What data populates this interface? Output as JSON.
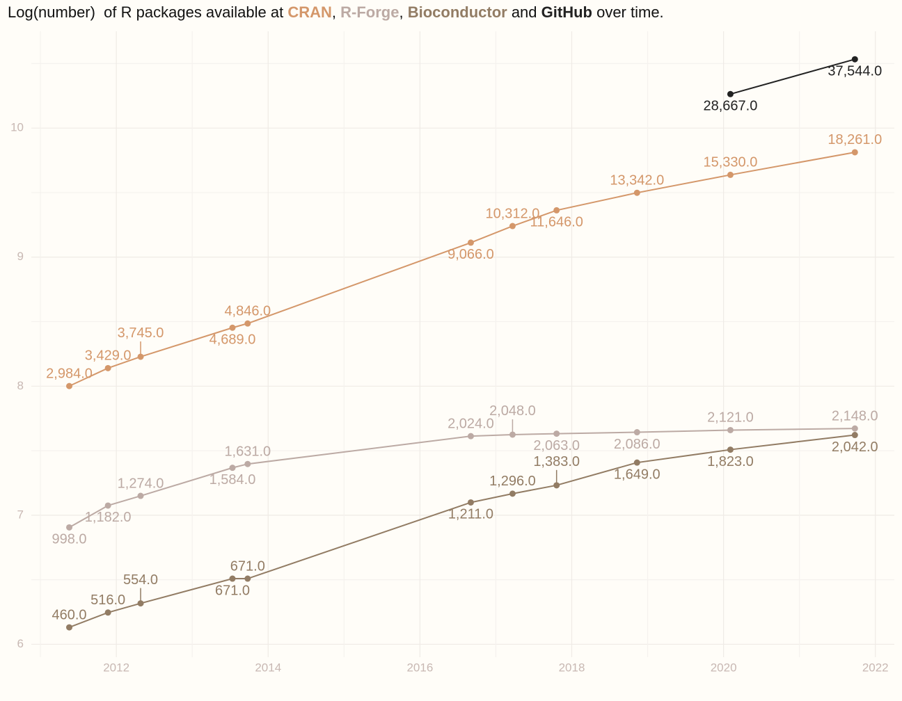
{
  "chart_data": {
    "type": "line",
    "title_parts": [
      "Log(number)  of R packages available at ",
      ", ",
      ", ",
      " and ",
      " over time."
    ],
    "log_scale": "ln",
    "xlim": [
      2010.88,
      2022.25
    ],
    "xticks": [
      2012,
      2014,
      2016,
      2018,
      2020,
      2022
    ],
    "ylim": [
      5.9,
      10.75
    ],
    "yticks": [
      6,
      7,
      8,
      9,
      10
    ],
    "grid": true,
    "series": [
      {
        "name": "CRAN",
        "color": "#d4976a",
        "x": [
          2011.38,
          2011.89,
          2012.32,
          2013.53,
          2013.73,
          2016.67,
          2017.22,
          2017.8,
          2018.86,
          2020.09,
          2021.73
        ],
        "values": [
          2984,
          3429,
          3745,
          4689,
          4846,
          9066,
          10312,
          11646,
          13342,
          15330,
          18261
        ],
        "value_labels": [
          "2,984.0",
          "3,429.0",
          "3,745.0",
          "4,689.0",
          "4,846.0",
          "9,066.0",
          "10,312.0",
          "11,646.0",
          "13,342.0",
          "15,330.0",
          "18,261.0"
        ]
      },
      {
        "name": "R-Forge",
        "color": "#bcaaa4",
        "x": [
          2011.38,
          2011.89,
          2012.32,
          2013.53,
          2013.73,
          2016.67,
          2017.22,
          2017.8,
          2018.86,
          2020.09,
          2021.73
        ],
        "values": [
          998,
          1182,
          1274,
          1584,
          1631,
          2024,
          2048,
          2063,
          2086,
          2121,
          2148
        ],
        "value_labels": [
          "998.0",
          "1,182.0",
          "1,274.0",
          "1,584.0",
          "1,631.0",
          "2,024.0",
          "2,048.0",
          "2,063.0",
          "2,086.0",
          "2,121.0",
          "2,148.0"
        ]
      },
      {
        "name": "Bioconductor",
        "color": "#927c64",
        "x": [
          2011.38,
          2011.89,
          2012.32,
          2013.53,
          2013.73,
          2016.67,
          2017.22,
          2017.8,
          2018.86,
          2020.09,
          2021.73
        ],
        "values": [
          460,
          516,
          554,
          671,
          671,
          1211,
          1296,
          1383,
          1649,
          1823,
          2042
        ],
        "value_labels": [
          "460.0",
          "516.0",
          "554.0",
          "671.0",
          "671.0",
          "1,211.0",
          "1,296.0",
          "1,383.0",
          "1,649.0",
          "1,823.0",
          "2,042.0"
        ]
      },
      {
        "name": "GitHub",
        "color": "#222222",
        "x": [
          2020.09,
          2021.73
        ],
        "values": [
          28667,
          37544
        ],
        "value_labels": [
          "28,667.0",
          "37,544.0"
        ]
      }
    ]
  }
}
